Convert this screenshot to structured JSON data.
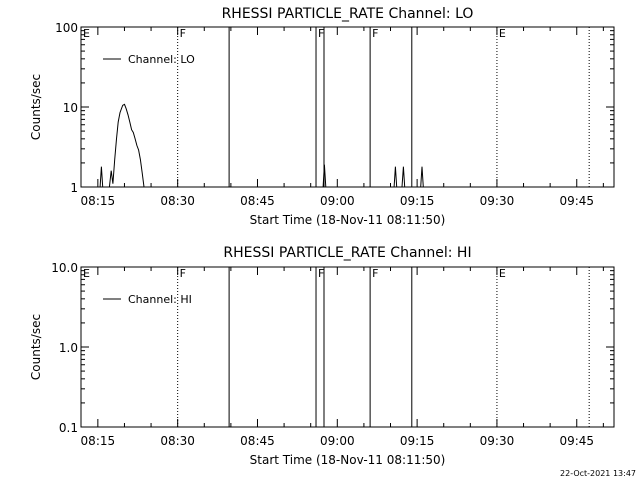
{
  "footer_date": "22-Oct-2021 13:47",
  "chart_data": [
    {
      "type": "line",
      "title": "RHESSI PARTICLE_RATE Channel: LO",
      "xlabel": "Start Time (18-Nov-11 08:11:50)",
      "ylabel": "Counts/sec",
      "yscale": "log",
      "ylim": [
        1,
        100
      ],
      "xlim": [
        "08:11:50",
        "09:52:00"
      ],
      "x_ticks": [
        "08:15",
        "08:30",
        "08:45",
        "09:00",
        "09:15",
        "09:30",
        "09:45"
      ],
      "y_ticks": [
        "1",
        "10",
        "100"
      ],
      "legend": {
        "label": "Channel: LO",
        "placement": "top-left"
      },
      "series": [
        {
          "name": "Channel: LO",
          "points": [
            [
              "08:15:25",
              1.0
            ],
            [
              "08:15:40",
              1.8
            ],
            [
              "08:15:55",
              1.0
            ],
            [
              "08:17:10",
              1.0
            ],
            [
              "08:17:30",
              1.6
            ],
            [
              "08:17:50",
              1.1
            ],
            [
              "08:18:10",
              2.2
            ],
            [
              "08:18:30",
              4.0
            ],
            [
              "08:18:50",
              6.5
            ],
            [
              "08:19:10",
              8.5
            ],
            [
              "08:19:40",
              10.5
            ],
            [
              "08:20:00",
              10.8
            ],
            [
              "08:20:20",
              9.5
            ],
            [
              "08:20:40",
              8.0
            ],
            [
              "08:21:00",
              6.5
            ],
            [
              "08:21:20",
              5.2
            ],
            [
              "08:21:40",
              4.8
            ],
            [
              "08:22:00",
              4.0
            ],
            [
              "08:22:20",
              3.3
            ],
            [
              "08:22:40",
              2.9
            ],
            [
              "08:23:00",
              2.2
            ],
            [
              "08:23:20",
              1.5
            ],
            [
              "08:23:40",
              1.0
            ],
            [
              "08:57:20",
              1.0
            ],
            [
              "08:57:35",
              1.9
            ],
            [
              "08:57:50",
              1.0
            ],
            [
              "09:10:40",
              1.0
            ],
            [
              "09:10:55",
              1.8
            ],
            [
              "09:11:10",
              1.0
            ],
            [
              "09:12:10",
              1.0
            ],
            [
              "09:12:25",
              1.8
            ],
            [
              "09:12:40",
              1.0
            ],
            [
              "09:15:40",
              1.0
            ],
            [
              "09:15:55",
              1.8
            ],
            [
              "09:16:10",
              1.0
            ]
          ]
        }
      ],
      "markers": [
        {
          "time": "08:11:50",
          "label": "E",
          "style": "none"
        },
        {
          "time": "08:30:00",
          "label": "F",
          "style": "dotted"
        },
        {
          "time": "08:39:40",
          "label": "",
          "style": "solid"
        },
        {
          "time": "08:56:00",
          "label": "F",
          "style": "solid"
        },
        {
          "time": "08:57:30",
          "label": "",
          "style": "solid"
        },
        {
          "time": "09:06:10",
          "label": "F",
          "style": "solid"
        },
        {
          "time": "09:14:00",
          "label": "",
          "style": "solid"
        },
        {
          "time": "09:30:00",
          "label": "E",
          "style": "dotted"
        },
        {
          "time": "09:47:20",
          "label": "",
          "style": "dotted"
        }
      ]
    },
    {
      "type": "line",
      "title": "RHESSI PARTICLE_RATE Channel: HI",
      "xlabel": "Start Time (18-Nov-11 08:11:50)",
      "ylabel": "Counts/sec",
      "yscale": "log",
      "ylim": [
        0.1,
        10
      ],
      "xlim": [
        "08:11:50",
        "09:52:00"
      ],
      "x_ticks": [
        "08:15",
        "08:30",
        "08:45",
        "09:00",
        "09:15",
        "09:30",
        "09:45"
      ],
      "y_ticks": [
        "0.1",
        "1.0",
        "10.0"
      ],
      "legend": {
        "label": "Channel: HI",
        "placement": "top-left"
      },
      "series": [
        {
          "name": "Channel: HI",
          "points": []
        }
      ],
      "markers": [
        {
          "time": "08:11:50",
          "label": "E",
          "style": "none"
        },
        {
          "time": "08:30:00",
          "label": "F",
          "style": "dotted"
        },
        {
          "time": "08:39:40",
          "label": "",
          "style": "solid"
        },
        {
          "time": "08:56:00",
          "label": "F",
          "style": "solid"
        },
        {
          "time": "08:57:30",
          "label": "",
          "style": "solid"
        },
        {
          "time": "09:06:10",
          "label": "F",
          "style": "solid"
        },
        {
          "time": "09:14:00",
          "label": "",
          "style": "solid"
        },
        {
          "time": "09:30:00",
          "label": "E",
          "style": "dotted"
        },
        {
          "time": "09:47:20",
          "label": "",
          "style": "dotted"
        }
      ]
    }
  ]
}
